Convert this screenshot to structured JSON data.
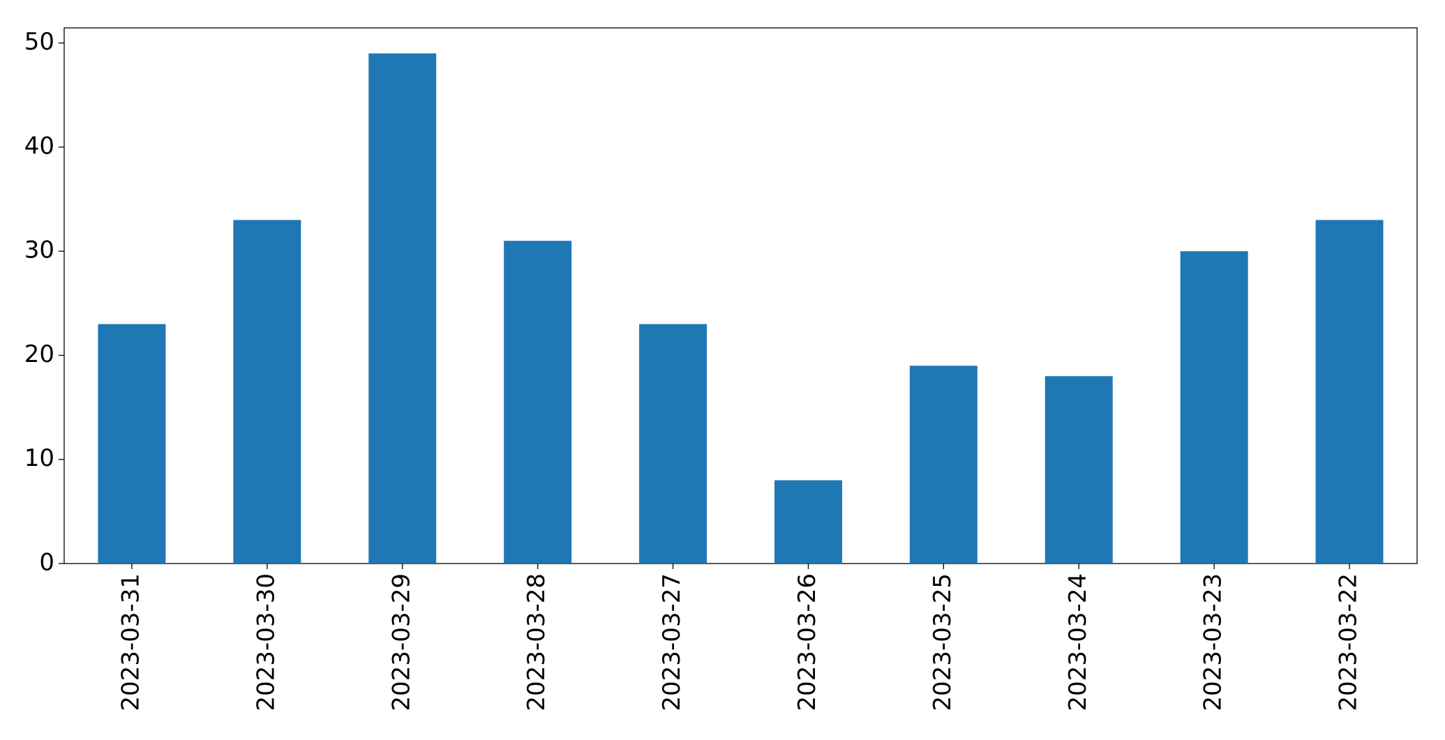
{
  "chart_data": {
    "type": "bar",
    "categories": [
      "2023-03-31",
      "2023-03-30",
      "2023-03-29",
      "2023-03-28",
      "2023-03-27",
      "2023-03-26",
      "2023-03-25",
      "2023-03-24",
      "2023-03-23",
      "2023-03-22"
    ],
    "values": [
      23,
      33,
      49,
      31,
      23,
      8,
      19,
      18,
      30,
      33
    ],
    "color": "#1f77b4",
    "ylim": [
      0,
      51.45
    ],
    "yticks": [
      0,
      10,
      20,
      30,
      40,
      50
    ],
    "grid": false
  }
}
